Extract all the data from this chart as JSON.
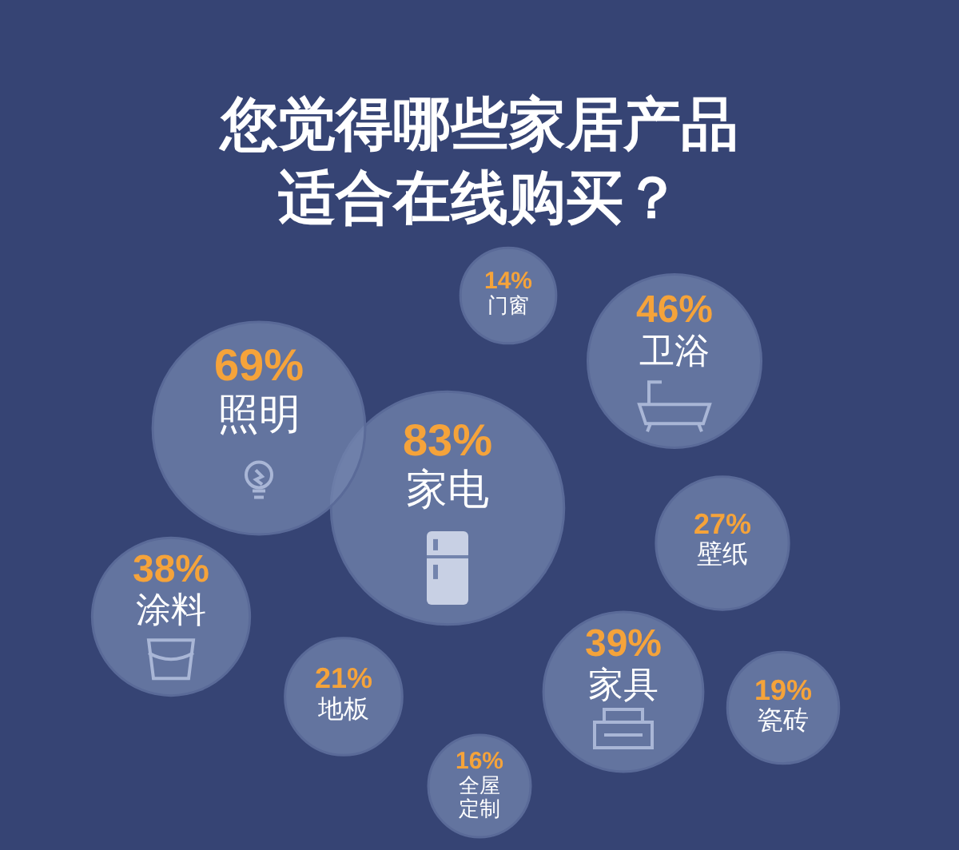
{
  "chart_data": {
    "type": "other",
    "title": "您觉得哪些家居产品适合在线购买？",
    "categories": [
      "家电",
      "照明",
      "门窗",
      "卫浴",
      "壁纸",
      "涂料",
      "地板",
      "全屋定制",
      "家具",
      "瓷砖"
    ],
    "values": [
      83,
      69,
      14,
      46,
      27,
      38,
      21,
      16,
      39,
      19
    ],
    "value_labels": [
      "83%",
      "69%",
      "14%",
      "46%",
      "27%",
      "38%",
      "21%",
      "16%",
      "39%",
      "19%"
    ],
    "color": "#7384ad"
  }
}
